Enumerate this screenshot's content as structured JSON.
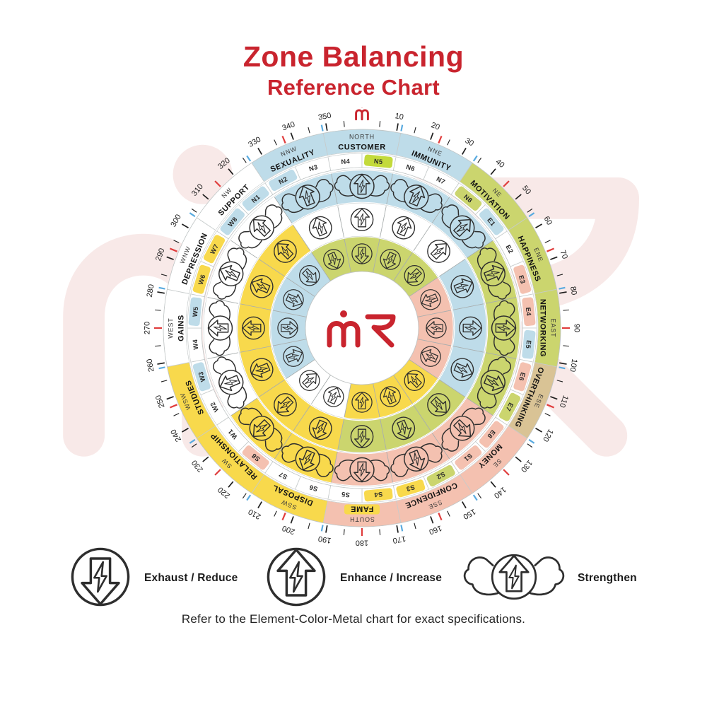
{
  "title": {
    "line1": "Zone Balancing",
    "line2": "Reference Chart"
  },
  "note": "Refer to the Element-Color-Metal chart for exact specifications.",
  "center_logo": "mR monogram",
  "legend": {
    "items": [
      {
        "icon": "exhaust-icon",
        "label": "Exhaust / Reduce"
      },
      {
        "icon": "enhance-icon",
        "label": "Enhance / Increase"
      },
      {
        "icon": "strengthen-icon",
        "label": "Strengthen"
      }
    ]
  },
  "colors": {
    "brand_red": "#c9242e",
    "blue": "#bedce9",
    "green": "#cbd56e",
    "pink": "#f4c1b0",
    "yellow": "#f8d94c",
    "tan": "#d9c395",
    "white": "#ffffff",
    "highlight_green": "#c3da3b",
    "highlight_yellow": "#f8d94c",
    "tick_red": "#e03c3c",
    "tick_blue": "#5aabe0",
    "ink": "#1d1d1d",
    "watermark": "#f8e9e8"
  },
  "wheel": {
    "rings_outer_to_inner": [
      "strengthen",
      "enhance",
      "exhaust"
    ],
    "degree_labels": [
      "10",
      "20",
      "30",
      "40",
      "50",
      "60",
      "70",
      "80",
      "90",
      "100",
      "110",
      "120",
      "130",
      "140",
      "150",
      "160",
      "170",
      "180",
      "190",
      "200",
      "210",
      "220",
      "230",
      "240",
      "250",
      "260",
      "270",
      "280",
      "290",
      "300",
      "310",
      "320",
      "330",
      "340",
      "350"
    ],
    "sectors": [
      {
        "direction": "NORTH",
        "zone": "CUSTOMER",
        "band": "blue",
        "zone_highlight": null,
        "codes": [
          {
            "label": "N4",
            "color": "white"
          },
          {
            "label": "N5",
            "color": "highlight_green"
          }
        ],
        "rings": {
          "strengthen": "blue",
          "enhance": "white",
          "exhaust": "green"
        }
      },
      {
        "direction": "NNE",
        "zone": "IMMUNITY",
        "band": "blue",
        "zone_highlight": null,
        "codes": [
          {
            "label": "N6",
            "color": "white"
          },
          {
            "label": "N7",
            "color": "white"
          }
        ],
        "rings": {
          "strengthen": "blue",
          "enhance": "white",
          "exhaust": "green"
        }
      },
      {
        "direction": "NE",
        "zone": "MOTIVATION",
        "band": "green",
        "zone_highlight": null,
        "codes": [
          {
            "label": "N8",
            "color": "green"
          },
          {
            "label": "E1",
            "color": "blue"
          }
        ],
        "rings": {
          "strengthen": "blue",
          "enhance": "white",
          "exhaust": "green"
        }
      },
      {
        "direction": "ENE",
        "zone": "HAPPINESS",
        "band": "green",
        "zone_highlight": null,
        "codes": [
          {
            "label": "E2",
            "color": "white"
          },
          {
            "label": "E3",
            "color": "pink"
          }
        ],
        "rings": {
          "strengthen": "green",
          "enhance": "blue",
          "exhaust": "pink"
        }
      },
      {
        "direction": "EAST",
        "zone": "NETWORKING",
        "band": "green",
        "zone_highlight": null,
        "codes": [
          {
            "label": "E4",
            "color": "pink"
          },
          {
            "label": "E5",
            "color": "blue"
          }
        ],
        "rings": {
          "strengthen": "green",
          "enhance": "blue",
          "exhaust": "pink"
        }
      },
      {
        "direction": "ESE",
        "zone": "OVERTHINKING",
        "band": "tan",
        "zone_highlight": null,
        "codes": [
          {
            "label": "E6",
            "color": "pink"
          },
          {
            "label": "E7",
            "color": "green"
          }
        ],
        "rings": {
          "strengthen": "green",
          "enhance": "blue",
          "exhaust": "pink"
        }
      },
      {
        "direction": "SE",
        "zone": "MONEY",
        "band": "pink",
        "zone_highlight": null,
        "codes": [
          {
            "label": "E8",
            "color": "pink"
          },
          {
            "label": "S1",
            "color": "pink"
          }
        ],
        "rings": {
          "strengthen": "pink",
          "enhance": "green",
          "exhaust": "yellow"
        }
      },
      {
        "direction": "SSE",
        "zone": "CONFIDENCE",
        "band": "pink",
        "zone_highlight": null,
        "codes": [
          {
            "label": "S2",
            "color": "green"
          },
          {
            "label": "S3",
            "color": "yellow"
          }
        ],
        "rings": {
          "strengthen": "pink",
          "enhance": "green",
          "exhaust": "yellow"
        }
      },
      {
        "direction": "SOUTH",
        "zone": "FAME",
        "band": "pink",
        "zone_highlight": "highlight_yellow",
        "codes": [
          {
            "label": "S4",
            "color": "yellow"
          },
          {
            "label": "S5",
            "color": "white"
          }
        ],
        "rings": {
          "strengthen": "pink",
          "enhance": "green",
          "exhaust": "yellow"
        }
      },
      {
        "direction": "SSW",
        "zone": "DISPOSAL",
        "band": "yellow",
        "zone_highlight": null,
        "codes": [
          {
            "label": "S6",
            "color": "white"
          },
          {
            "label": "S7",
            "color": "white"
          }
        ],
        "rings": {
          "strengthen": "yellow",
          "enhance": "yellow",
          "exhaust": "white"
        }
      },
      {
        "direction": "SW",
        "zone": "RELATIONSHIP",
        "band": "yellow",
        "zone_highlight": null,
        "codes": [
          {
            "label": "S8",
            "color": "pink"
          },
          {
            "label": "W1",
            "color": "white"
          }
        ],
        "rings": {
          "strengthen": "yellow",
          "enhance": "yellow",
          "exhaust": "white"
        }
      },
      {
        "direction": "WSW",
        "zone": "STUDIES",
        "band": "yellow",
        "zone_highlight": null,
        "codes": [
          {
            "label": "W2",
            "color": "white"
          },
          {
            "label": "W3",
            "color": "blue"
          }
        ],
        "rings": {
          "strengthen": "white",
          "enhance": "yellow",
          "exhaust": "blue"
        }
      },
      {
        "direction": "WEST",
        "zone": "GAINS",
        "band": "white",
        "zone_highlight": null,
        "codes": [
          {
            "label": "W4",
            "color": "white"
          },
          {
            "label": "W5",
            "color": "blue"
          }
        ],
        "rings": {
          "strengthen": "white",
          "enhance": "yellow",
          "exhaust": "blue"
        }
      },
      {
        "direction": "WNW",
        "zone": "DEPRESSION",
        "band": "white",
        "zone_highlight": null,
        "codes": [
          {
            "label": "W6",
            "color": "yellow"
          },
          {
            "label": "W7",
            "color": "yellow"
          }
        ],
        "rings": {
          "strengthen": "white",
          "enhance": "yellow",
          "exhaust": "blue"
        }
      },
      {
        "direction": "NW",
        "zone": "SUPPORT",
        "band": "white",
        "zone_highlight": null,
        "codes": [
          {
            "label": "W8",
            "color": "blue"
          },
          {
            "label": "N1",
            "color": "blue"
          }
        ],
        "rings": {
          "strengthen": "white",
          "enhance": "yellow",
          "exhaust": "blue"
        }
      },
      {
        "direction": "NNW",
        "zone": "SEXUALITY",
        "band": "blue",
        "zone_highlight": null,
        "codes": [
          {
            "label": "N2",
            "color": "blue"
          },
          {
            "label": "N3",
            "color": "white"
          }
        ],
        "rings": {
          "strengthen": "blue",
          "enhance": "white",
          "exhaust": "green"
        }
      }
    ]
  }
}
